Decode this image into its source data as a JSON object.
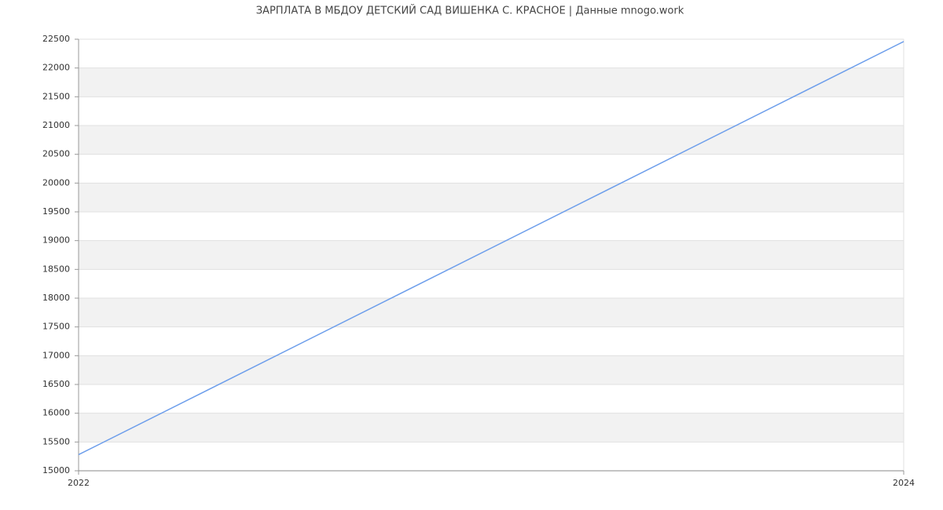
{
  "chart_data": {
    "type": "line",
    "title": "ЗАРПЛАТА В МБДОУ ДЕТСКИЙ САД ВИШЕНКА С. КРАСНОЕ | Данные mnogo.work",
    "x": [
      2022,
      2024
    ],
    "series": [
      {
        "color": "#6d9eeb",
        "values": [
          15280,
          22460
        ]
      }
    ],
    "xlim": [
      2022,
      2024
    ],
    "xticks": [
      2022,
      2024
    ],
    "ylim": [
      15000,
      22500
    ],
    "yticks": [
      15000,
      15500,
      16000,
      16500,
      17000,
      17500,
      18000,
      18500,
      19000,
      19500,
      20000,
      20500,
      21000,
      21500,
      22000,
      22500
    ],
    "grid": true
  }
}
